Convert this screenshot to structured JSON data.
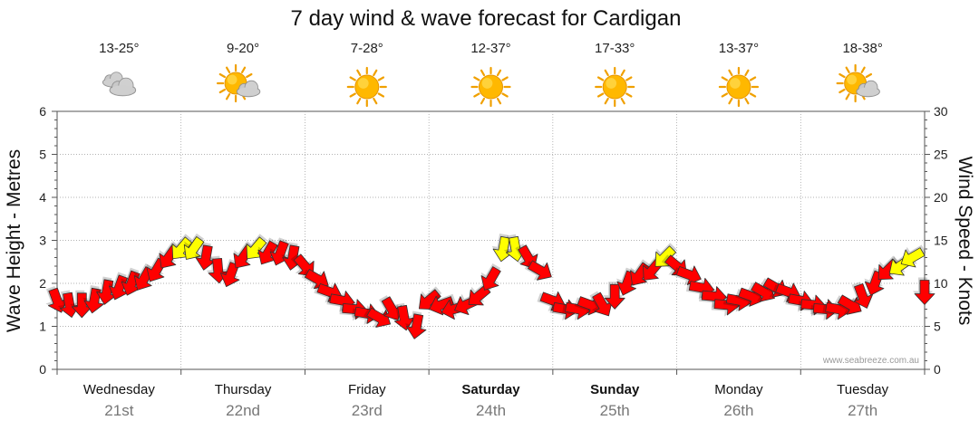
{
  "title": "7 day wind & wave forecast for Cardigan",
  "credit": "www.seabreeze.com.au",
  "colors": {
    "strong_wind": "#ff0000",
    "light_wind": "#ffff00",
    "arrow_stroke": "#333333",
    "grid": "#999999"
  },
  "days": [
    {
      "name": "Wednesday",
      "date": "21st",
      "temp": "13-25°",
      "icon": "cloudy-icon",
      "bold": false
    },
    {
      "name": "Thursday",
      "date": "22nd",
      "temp": "9-20°",
      "icon": "partly-cloudy-icon",
      "bold": false
    },
    {
      "name": "Friday",
      "date": "23rd",
      "temp": "7-28°",
      "icon": "sunny-icon",
      "bold": false
    },
    {
      "name": "Saturday",
      "date": "24th",
      "temp": "12-37°",
      "icon": "sunny-icon",
      "bold": true
    },
    {
      "name": "Sunday",
      "date": "25th",
      "temp": "17-33°",
      "icon": "sunny-icon",
      "bold": true
    },
    {
      "name": "Monday",
      "date": "26th",
      "temp": "13-37°",
      "icon": "sunny-icon",
      "bold": false
    },
    {
      "name": "Tuesday",
      "date": "27th",
      "temp": "18-38°",
      "icon": "partly-cloudy-icon",
      "bold": false
    }
  ],
  "chart_data": {
    "type": "line",
    "title": "7 day wind & wave forecast for Cardigan",
    "ylabel_left": "Wave Height - Metres",
    "ylabel_right": "Wind Speed - Knots",
    "ylim_left": [
      0,
      6
    ],
    "ylim_right": [
      0,
      30
    ],
    "yticks_left": [
      "0",
      "1",
      "2",
      "3",
      "4",
      "5",
      "6"
    ],
    "yticks_right": [
      "0",
      "5",
      "10",
      "15",
      "20",
      "25",
      "30"
    ],
    "grid": true,
    "x_unit": "days from start",
    "xlim": [
      0,
      7
    ],
    "series": [
      {
        "x": [
          0.0,
          0.1,
          0.2,
          0.3,
          0.4,
          0.5,
          0.6,
          0.7,
          0.8,
          0.9,
          1.0,
          1.1,
          1.2,
          1.3,
          1.4,
          1.5,
          1.6,
          1.7,
          1.8,
          1.9,
          2.0,
          2.1,
          2.2,
          2.3,
          2.4,
          2.5,
          2.6,
          2.7,
          2.8,
          2.9,
          3.0,
          3.1,
          3.2,
          3.3,
          3.4,
          3.5,
          3.6,
          3.7,
          3.8,
          3.9,
          4.0,
          4.1,
          4.2,
          4.3,
          4.4,
          4.5,
          4.6,
          4.7,
          4.8,
          4.9,
          5.0,
          5.1,
          5.2,
          5.3,
          5.4,
          5.5,
          5.6,
          5.7,
          5.8,
          5.9,
          6.0,
          6.1,
          6.2,
          6.3,
          6.4,
          6.5,
          6.6,
          6.7,
          6.8,
          6.9,
          7.0
        ],
        "wave_m": [
          1.6,
          1.5,
          1.5,
          1.6,
          1.8,
          1.9,
          2.0,
          2.1,
          2.3,
          2.6,
          2.8,
          2.8,
          2.6,
          2.3,
          2.2,
          2.6,
          2.8,
          2.7,
          2.7,
          2.6,
          2.4,
          2.1,
          1.8,
          1.6,
          1.4,
          1.3,
          1.2,
          1.4,
          1.2,
          1.0,
          1.6,
          1.5,
          1.4,
          1.5,
          1.7,
          2.1,
          2.8,
          2.8,
          2.6,
          2.3,
          1.6,
          1.4,
          1.4,
          1.5,
          1.5,
          1.7,
          2.0,
          2.2,
          2.3,
          2.6,
          2.4,
          2.2,
          1.9,
          1.7,
          1.5,
          1.6,
          1.7,
          1.8,
          1.9,
          1.8,
          1.6,
          1.5,
          1.4,
          1.4,
          1.5,
          1.7,
          2.0,
          2.3,
          2.4,
          2.6,
          1.8
        ],
        "wind_kn": [
          9,
          8,
          8,
          9,
          10,
          11,
          12,
          12,
          13,
          13,
          14,
          14,
          12,
          11,
          12,
          13,
          14,
          13,
          13,
          13,
          12,
          11,
          10,
          9,
          8,
          7,
          8,
          7,
          6,
          7,
          8,
          8,
          7,
          8,
          10,
          12,
          14,
          14,
          13,
          12,
          8,
          7,
          7,
          8,
          9,
          10,
          12,
          13,
          13,
          14,
          12,
          11,
          9,
          8,
          8,
          8,
          9,
          9,
          10,
          9,
          8,
          7,
          7,
          8,
          9,
          10,
          12,
          13,
          14,
          15,
          10
        ],
        "dir_deg": [
          160,
          170,
          180,
          190,
          190,
          200,
          200,
          210,
          210,
          215,
          220,
          215,
          190,
          175,
          200,
          215,
          220,
          210,
          200,
          190,
          140,
          120,
          110,
          100,
          95,
          100,
          120,
          150,
          170,
          190,
          230,
          250,
          255,
          245,
          230,
          210,
          190,
          170,
          150,
          120,
          110,
          100,
          100,
          110,
          150,
          180,
          200,
          215,
          220,
          225,
          130,
          110,
          100,
          95,
          95,
          100,
          110,
          120,
          120,
          110,
          100,
          95,
          95,
          100,
          120,
          160,
          200,
          225,
          235,
          240,
          180
        ]
      }
    ],
    "wind_color_threshold_kn": 14
  }
}
